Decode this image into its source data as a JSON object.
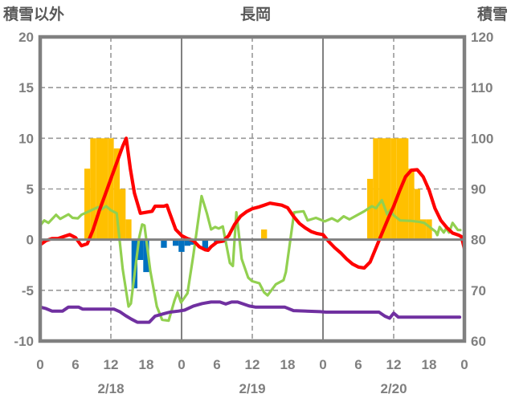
{
  "header": {
    "left_axis_title": "積雪以外",
    "chart_title": "長岡",
    "right_axis_title": "積雪"
  },
  "colors": {
    "frame": "#808080",
    "gridline": "#999999",
    "axis_text": "#7f7f7f",
    "title_text": "#595959",
    "orange_bar": "#FFC000",
    "blue_bar": "#0070C0",
    "red_line": "#FF0000",
    "green_line": "#92D050",
    "purple_line": "#7030A0"
  },
  "chart_data": {
    "type": "bar",
    "title": "長岡",
    "left_axis": {
      "title": "積雪以外",
      "min": -10,
      "max": 20,
      "ticks": [
        20,
        15,
        10,
        5,
        0,
        -5,
        -10
      ]
    },
    "right_axis": {
      "title": "積雪",
      "min": 60,
      "max": 120,
      "ticks": [
        120,
        110,
        100,
        90,
        80,
        70,
        60
      ]
    },
    "x_axis": {
      "hours_total": 72,
      "tick_labels": [
        "0",
        "6",
        "12",
        "18",
        "0",
        "6",
        "12",
        "18",
        "0",
        "6",
        "12",
        "18",
        "0"
      ],
      "date_labels": [
        "2/18",
        "2/19",
        "2/20"
      ],
      "date_label_hours": [
        12,
        36,
        60
      ]
    },
    "gridlines": {
      "h_dashed_at": [
        15,
        10,
        5,
        -5
      ],
      "v_dashed_at_hours": [
        12,
        36,
        60
      ],
      "v_solid_at_hours": [
        24,
        48
      ],
      "zero_line_at": 0
    },
    "series": [
      {
        "name": "orange-bars",
        "type": "bar",
        "axis": "left",
        "color": "#FFC000",
        "points": [
          [
            8,
            7
          ],
          [
            9,
            10
          ],
          [
            10,
            10
          ],
          [
            11,
            10
          ],
          [
            12,
            10
          ],
          [
            13,
            9
          ],
          [
            14,
            5
          ],
          [
            15,
            2
          ],
          [
            38,
            1
          ],
          [
            56,
            6
          ],
          [
            57,
            10
          ],
          [
            58,
            10
          ],
          [
            59,
            10
          ],
          [
            60,
            10
          ],
          [
            61,
            10
          ],
          [
            62,
            10
          ],
          [
            63,
            7
          ],
          [
            64,
            5
          ],
          [
            65,
            2
          ],
          [
            66,
            2
          ]
        ]
      },
      {
        "name": "blue-bars",
        "type": "bar",
        "axis": "left",
        "color": "#0070C0",
        "points": [
          [
            16,
            -4.8
          ],
          [
            17,
            -2.0
          ],
          [
            18,
            -3.2
          ],
          [
            21,
            -0.8
          ],
          [
            23,
            -0.6
          ],
          [
            24,
            -1.2
          ],
          [
            25,
            -0.6
          ],
          [
            26,
            -0.5
          ],
          [
            28,
            -1.0
          ],
          [
            30,
            -0.3
          ],
          [
            31,
            -0.3
          ]
        ]
      },
      {
        "name": "green-line",
        "type": "line",
        "axis": "left",
        "color": "#92D050",
        "width": 3.2,
        "points": [
          [
            0,
            1.4
          ],
          [
            0.7,
            1.9
          ],
          [
            1.4,
            1.65
          ],
          [
            2.7,
            2.45
          ],
          [
            3.4,
            2.05
          ],
          [
            4.8,
            2.5
          ],
          [
            5.5,
            2.15
          ],
          [
            6.4,
            2.1
          ],
          [
            7,
            2.45
          ],
          [
            8.5,
            2.85
          ],
          [
            9.8,
            3.2
          ],
          [
            10.4,
            3.0
          ],
          [
            11.2,
            3.3
          ],
          [
            12,
            2.9
          ],
          [
            13,
            2.6
          ],
          [
            14,
            -2.9
          ],
          [
            15,
            -6.6
          ],
          [
            15.4,
            -6.3
          ],
          [
            16.8,
            0.2
          ],
          [
            17.3,
            1.5
          ],
          [
            17.7,
            1.4
          ],
          [
            18.7,
            -3.1
          ],
          [
            19.8,
            -6.6
          ],
          [
            20.7,
            -7.9
          ],
          [
            21.8,
            -8.0
          ],
          [
            22.8,
            -6.0
          ],
          [
            23.3,
            -5.2
          ],
          [
            23.9,
            -6.2
          ],
          [
            25,
            -5.3
          ],
          [
            26,
            -1.5
          ],
          [
            27.4,
            4.3
          ],
          [
            28.3,
            2.6
          ],
          [
            29,
            1.0
          ],
          [
            29.7,
            1.25
          ],
          [
            30.3,
            1.1
          ],
          [
            31,
            1.3
          ],
          [
            32.2,
            -2.3
          ],
          [
            32.7,
            -2.6
          ],
          [
            33.3,
            2.7
          ],
          [
            34.2,
            -1.9
          ],
          [
            35.3,
            -3.75
          ],
          [
            36,
            -4.1
          ],
          [
            37.2,
            -4.3
          ],
          [
            38,
            -5.2
          ],
          [
            38.6,
            -5.5
          ],
          [
            40,
            -4.4
          ],
          [
            41.3,
            -4.0
          ],
          [
            41.7,
            -3.2
          ],
          [
            43.1,
            2.7
          ],
          [
            44.7,
            2.8
          ],
          [
            45.4,
            1.9
          ],
          [
            46.8,
            2.15
          ],
          [
            48.3,
            1.8
          ],
          [
            49.5,
            2.1
          ],
          [
            50.5,
            1.8
          ],
          [
            51.5,
            2.3
          ],
          [
            52.5,
            2.0
          ],
          [
            53.9,
            2.45
          ],
          [
            55,
            2.8
          ],
          [
            56.3,
            3.3
          ],
          [
            57,
            3.1
          ],
          [
            58,
            3.9
          ],
          [
            58.9,
            2.5
          ],
          [
            59.4,
            2.9
          ],
          [
            60,
            2.4
          ],
          [
            61.1,
            1.9
          ],
          [
            63,
            1.85
          ],
          [
            64.4,
            1.75
          ],
          [
            65.2,
            1.65
          ],
          [
            67.1,
            0.8
          ],
          [
            67.4,
            0.45
          ],
          [
            67.8,
            1.25
          ],
          [
            68.5,
            0.7
          ],
          [
            68.9,
            1.1
          ],
          [
            69.4,
            0.7
          ],
          [
            70,
            1.65
          ],
          [
            70.9,
            0.95
          ],
          [
            71.3,
            0.95
          ]
        ]
      },
      {
        "name": "purple-line",
        "type": "line",
        "axis": "right",
        "color": "#7030A0",
        "width": 4,
        "points": [
          [
            0,
            66.7
          ],
          [
            1,
            66.4
          ],
          [
            2,
            65.9
          ],
          [
            3.8,
            65.9
          ],
          [
            4.8,
            66.7
          ],
          [
            6.5,
            66.7
          ],
          [
            7.2,
            66.3
          ],
          [
            12.5,
            66.3
          ],
          [
            13.5,
            65.8
          ],
          [
            14.5,
            65.0
          ],
          [
            15.5,
            64.3
          ],
          [
            16.5,
            63.7
          ],
          [
            18.5,
            63.7
          ],
          [
            19.5,
            64.9
          ],
          [
            21,
            65.4
          ],
          [
            22,
            65.7
          ],
          [
            23.5,
            65.9
          ],
          [
            24.5,
            66.1
          ],
          [
            26,
            66.9
          ],
          [
            27.5,
            67.4
          ],
          [
            29,
            67.7
          ],
          [
            30.5,
            67.7
          ],
          [
            31.5,
            67.3
          ],
          [
            32.5,
            67.7
          ],
          [
            33.5,
            67.7
          ],
          [
            34.5,
            67.3
          ],
          [
            35.5,
            66.9
          ],
          [
            36.5,
            66.7
          ],
          [
            41.5,
            66.7
          ],
          [
            43,
            66.0
          ],
          [
            47.5,
            65.8
          ],
          [
            48.5,
            65.7
          ],
          [
            57.5,
            65.7
          ],
          [
            58.5,
            64.9
          ],
          [
            59.3,
            64.5
          ],
          [
            60,
            65.5
          ],
          [
            60.8,
            64.7
          ],
          [
            71.2,
            64.7
          ]
        ]
      },
      {
        "name": "red-line",
        "type": "line",
        "axis": "left",
        "color": "#FF0000",
        "width": 4.2,
        "points": [
          [
            0,
            -0.5
          ],
          [
            1,
            -0.1
          ],
          [
            2,
            0.1
          ],
          [
            3,
            0.1
          ],
          [
            4,
            0.3
          ],
          [
            5,
            0.5
          ],
          [
            6,
            0.2
          ],
          [
            7,
            -0.6
          ],
          [
            8,
            -0.4
          ],
          [
            9,
            1.0
          ],
          [
            10,
            2.8
          ],
          [
            11,
            4.4
          ],
          [
            12,
            6.0
          ],
          [
            13,
            7.6
          ],
          [
            14,
            9.2
          ],
          [
            14.6,
            10.0
          ],
          [
            15.3,
            7.0
          ],
          [
            16,
            4.6
          ],
          [
            17,
            2.6
          ],
          [
            18,
            2.7
          ],
          [
            19,
            2.8
          ],
          [
            19.5,
            3.3
          ],
          [
            21,
            3.3
          ],
          [
            21.5,
            3.4
          ],
          [
            22,
            2.6
          ],
          [
            23,
            1.0
          ],
          [
            24,
            0.4
          ],
          [
            25,
            0.1
          ],
          [
            26,
            -0.1
          ],
          [
            27,
            -0.7
          ],
          [
            28,
            -1.0
          ],
          [
            28.5,
            -1.05
          ],
          [
            29,
            -0.7
          ],
          [
            30,
            -0.25
          ],
          [
            31,
            -0.15
          ],
          [
            32,
            0.4
          ],
          [
            33,
            1.5
          ],
          [
            34,
            2.3
          ],
          [
            35,
            2.75
          ],
          [
            36,
            3.05
          ],
          [
            37,
            3.2
          ],
          [
            38,
            3.4
          ],
          [
            39,
            3.6
          ],
          [
            40,
            3.5
          ],
          [
            41,
            3.4
          ],
          [
            42,
            3.15
          ],
          [
            43,
            2.3
          ],
          [
            44,
            1.6
          ],
          [
            45,
            1.15
          ],
          [
            46,
            0.8
          ],
          [
            47,
            0.6
          ],
          [
            48,
            0.5
          ],
          [
            49,
            -0.2
          ],
          [
            50,
            -0.8
          ],
          [
            51,
            -1.3
          ],
          [
            52,
            -1.9
          ],
          [
            53,
            -2.4
          ],
          [
            54,
            -2.7
          ],
          [
            55,
            -2.8
          ],
          [
            56,
            -2.2
          ],
          [
            57,
            -0.8
          ],
          [
            58,
            0.6
          ],
          [
            59,
            2.0
          ],
          [
            60,
            3.3
          ],
          [
            61,
            4.8
          ],
          [
            62,
            6.2
          ],
          [
            63,
            6.85
          ],
          [
            64,
            6.9
          ],
          [
            65,
            6.2
          ],
          [
            66,
            4.9
          ],
          [
            67,
            3.1
          ],
          [
            68,
            1.9
          ],
          [
            69,
            1.2
          ],
          [
            70,
            0.65
          ],
          [
            71,
            0.45
          ],
          [
            71.5,
            0.3
          ],
          [
            72,
            -0.9
          ]
        ]
      }
    ]
  }
}
